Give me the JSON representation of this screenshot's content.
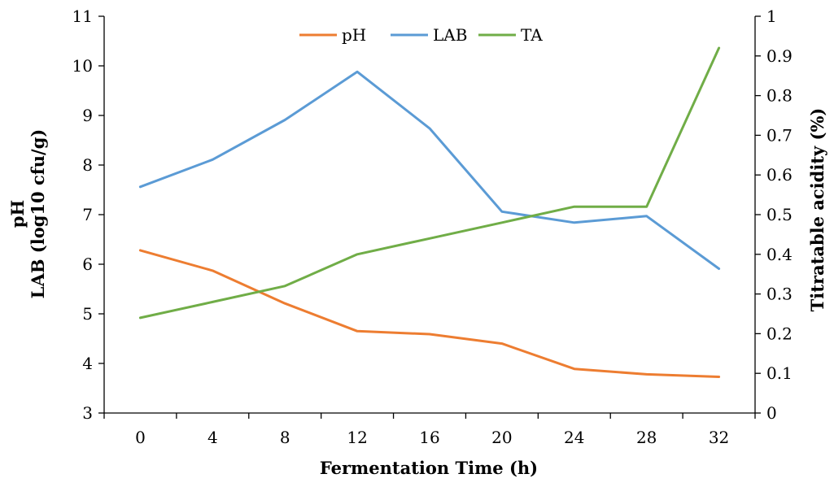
{
  "chart_data": {
    "type": "line",
    "title": "",
    "xlabel": "Fermentation Time (h)",
    "ylabel_left": [
      "pH",
      "LAB (log10 cfu/g)"
    ],
    "ylabel_right": "Titratable acidity (%)",
    "x": [
      0,
      4,
      8,
      12,
      16,
      20,
      24,
      28,
      32
    ],
    "x_tick_labels": [
      "0",
      "4",
      "8",
      "12",
      "16",
      "20",
      "24",
      "28",
      "32"
    ],
    "y_left_range": [
      3,
      11
    ],
    "y_left_ticks": [
      3,
      4,
      5,
      6,
      7,
      8,
      9,
      10,
      11
    ],
    "y_right_range": [
      0,
      1
    ],
    "y_right_ticks": [
      "0",
      "0.1",
      "0.2",
      "0.3",
      "0.4",
      "0.5",
      "0.6",
      "0.7",
      "0.8",
      "0.9",
      "1"
    ],
    "grid": false,
    "legend_position": "top-center",
    "series": [
      {
        "name": "pH",
        "axis": "left",
        "color": "#ED7D31",
        "values": [
          6.28,
          5.87,
          5.21,
          4.65,
          4.59,
          4.4,
          3.89,
          3.78,
          3.73
        ]
      },
      {
        "name": "LAB",
        "axis": "left",
        "color": "#5B9BD5",
        "values": [
          7.56,
          8.11,
          8.91,
          9.88,
          8.74,
          7.06,
          6.84,
          6.97,
          5.91
        ]
      },
      {
        "name": "TA",
        "axis": "right",
        "color": "#70AD47",
        "values": [
          0.24,
          0.28,
          0.32,
          0.4,
          0.44,
          0.48,
          0.52,
          0.52,
          0.92
        ]
      }
    ]
  }
}
